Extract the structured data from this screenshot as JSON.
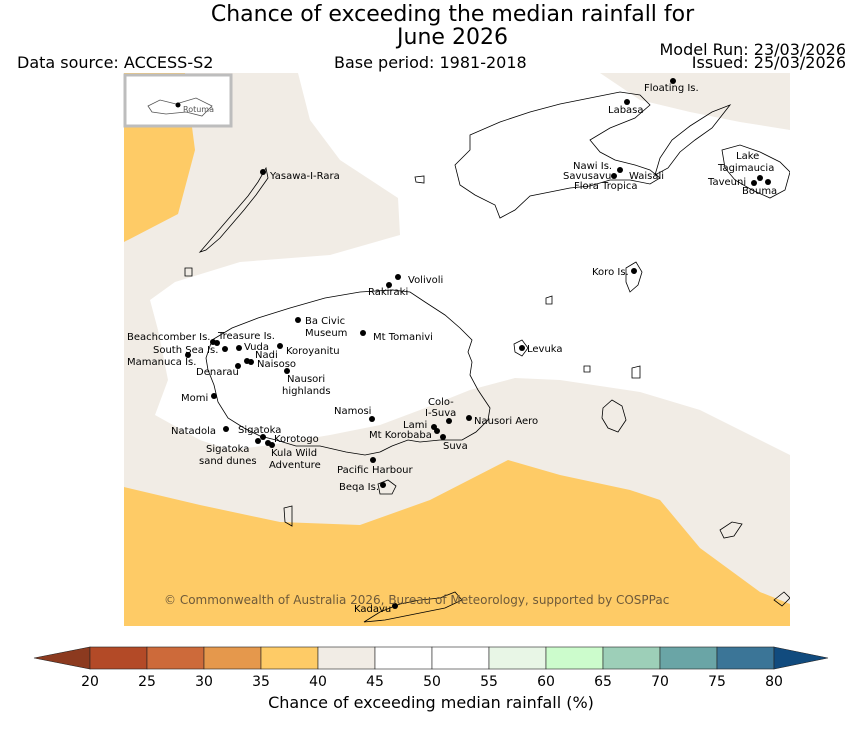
{
  "title_line1": "Chance of exceeding the median rainfall for",
  "title_line2": "June 2026",
  "data_source": "Data source: ACCESS-S2",
  "base_period": "Base period: 1981-2018",
  "model_run": "Model Run: 23/03/2026",
  "issued": "Issued: 25/03/2026",
  "inset_label": "Rotuma",
  "copyright": "© Commonwealth of Australia 2026, Bureau of Meteorology, supported by COSPPac",
  "colorbar": {
    "label": "Chance of exceeding median rainfall (%)",
    "ticks": [
      "20",
      "25",
      "30",
      "35",
      "40",
      "45",
      "50",
      "55",
      "60",
      "65",
      "70",
      "75",
      "80"
    ],
    "colors": {
      "under20": "#8c3a1f",
      "b20_25": "#b34a27",
      "b25_30": "#cd6a3a",
      "b30_35": "#e5984c",
      "b35_40": "#fecb66",
      "b40_45": "#f1ece5",
      "b45_50": "#ffffff",
      "b50_55": "#ffffff",
      "b55_60": "#e8f6e6",
      "b60_65": "#ccfccc",
      "b65_70": "#9dcfb8",
      "b70_75": "#6aa5a6",
      "b75_80": "#3b7597",
      "over80": "#114b7e"
    }
  },
  "places": {
    "floating": "Floating Is.",
    "labasa": "Labasa",
    "nawi": "Nawi Is.",
    "savusavu": "Savusavu",
    "waisali": "Waisali",
    "flora": "Flora Tropica",
    "lake1": "Lake",
    "lake2": "Tagimaucia",
    "taveuni": "Taveuni",
    "bouma": "Bouma",
    "yasawa": "Yasawa-I-Rara",
    "koro": "Koro Is.",
    "volivoli": "Volivoli",
    "rakiraki": "Rakiraki",
    "bacivic1": "Ba Civic",
    "bacivic2": "Museum",
    "tomanivi": "Mt Tomanivi",
    "beachcomber": "Beachcomber Is.",
    "treasure": "Treasure Is.",
    "southsea": "South Sea Is.",
    "vuda": "Vuda",
    "nadi": "Nadi",
    "koroyanitu": "Koroyanitu",
    "mamanuca": "Mamanuca Is.",
    "naisoso": "Naisoso",
    "denarau": "Denarau",
    "nausori_hl1": "Nausori",
    "nausori_hl2": "highlands",
    "levuka": "Levuka",
    "momi": "Momi",
    "namosi": "Namosi",
    "colo1": "Colo-",
    "colo2": "I-Suva",
    "nausori_aero": "Nausori Aero",
    "lami": "Lami",
    "korobaba": "Mt Korobaba",
    "suva": "Suva",
    "natadola": "Natadola",
    "sigatoka": "Sigatoka",
    "korotogo": "Korotogo",
    "sigsand1": "Sigatoka",
    "sigsand2": "sand dunes",
    "kula1": "Kula Wild",
    "kula2": "Adventure",
    "pacharbour": "Pacific Harbour",
    "beqa": "Beqa Is.",
    "kadavu": "Kadavu"
  }
}
